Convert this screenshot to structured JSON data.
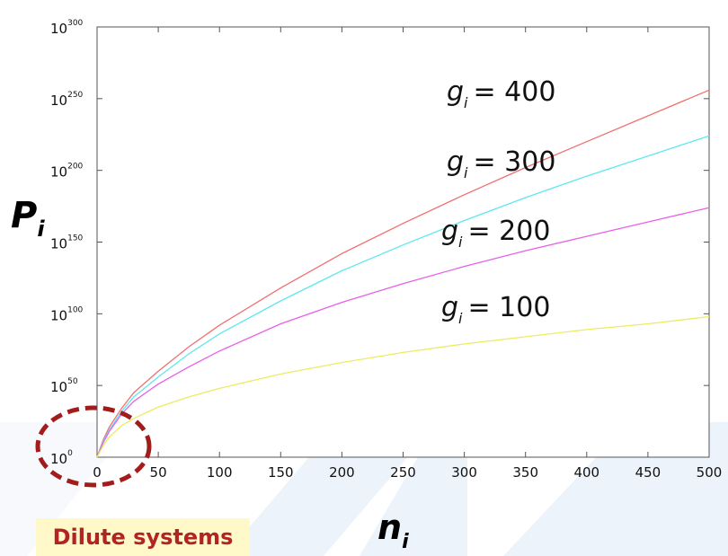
{
  "chart_data": {
    "type": "line",
    "title": "",
    "y_axis_title": {
      "main": "P",
      "sub": "i"
    },
    "x_axis_title": {
      "main": "n",
      "sub": "i"
    },
    "xlim": [
      0,
      500
    ],
    "ylim_exponent": [
      0,
      300
    ],
    "y_scale": "log10",
    "grid": false,
    "x_ticks": [
      0,
      50,
      100,
      150,
      200,
      250,
      300,
      350,
      400,
      450,
      500
    ],
    "x_tick_labels": [
      "0",
      "50",
      "100",
      "150",
      "200",
      "250",
      "300",
      "350",
      "400",
      "450",
      "500"
    ],
    "y_ticks": [
      {
        "base": "10",
        "exp": "0"
      },
      {
        "base": "10",
        "exp": "50"
      },
      {
        "base": "10",
        "exp": "100"
      },
      {
        "base": "10",
        "exp": "150"
      },
      {
        "base": "10",
        "exp": "200"
      },
      {
        "base": "10",
        "exp": "250"
      },
      {
        "base": "10",
        "exp": "300"
      }
    ],
    "x": [
      0,
      5,
      10,
      20,
      30,
      50,
      75,
      100,
      150,
      200,
      250,
      300,
      350,
      400,
      450,
      500
    ],
    "series": [
      {
        "label_main": "g",
        "label_sub": "i",
        "label_value": "= 400",
        "color": "#f07070",
        "log10_values": [
          0,
          12,
          21,
          34,
          45,
          60,
          77,
          92,
          118,
          142,
          163,
          183,
          202,
          220,
          238,
          256
        ]
      },
      {
        "label_main": "g",
        "label_sub": "i",
        "label_value": "= 300",
        "color": "#5ee8ee",
        "log10_values": [
          0,
          11,
          19,
          32,
          42,
          56,
          72,
          86,
          109,
          130,
          148,
          165,
          181,
          196,
          210,
          224
        ]
      },
      {
        "label_main": "g",
        "label_sub": "i",
        "label_value": "= 200",
        "color": "#e860e8",
        "log10_values": [
          0,
          10,
          18,
          30,
          39,
          51,
          63,
          74,
          93,
          108,
          121,
          133,
          144,
          154,
          164,
          174
        ]
      },
      {
        "label_main": "g",
        "label_sub": "i",
        "label_value": "= 100",
        "color": "#ecec60",
        "log10_values": [
          0,
          8,
          14,
          22,
          27,
          35,
          42,
          48,
          58,
          66,
          73,
          79,
          84,
          89,
          93,
          98
        ]
      }
    ],
    "annotation": {
      "text": "Dilute systems",
      "color": "#b22424"
    }
  }
}
